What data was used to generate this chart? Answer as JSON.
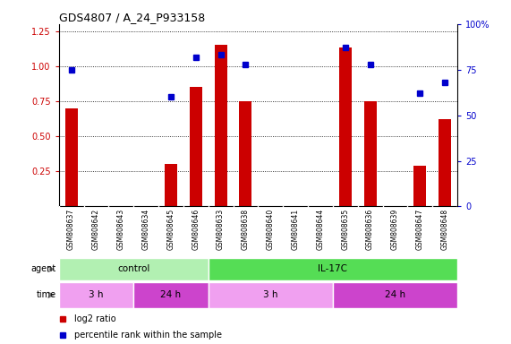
{
  "title": "GDS4807 / A_24_P933158",
  "samples": [
    "GSM808637",
    "GSM808642",
    "GSM808643",
    "GSM808634",
    "GSM808645",
    "GSM808646",
    "GSM808633",
    "GSM808638",
    "GSM808640",
    "GSM808641",
    "GSM808644",
    "GSM808635",
    "GSM808636",
    "GSM808639",
    "GSM808647",
    "GSM808648"
  ],
  "log2_ratio": [
    0.7,
    0.0,
    0.0,
    0.0,
    0.3,
    0.85,
    1.15,
    0.75,
    0.0,
    0.0,
    0.0,
    1.13,
    0.75,
    0.0,
    0.29,
    0.62
  ],
  "percentile_pct": [
    75,
    0,
    0,
    0,
    60,
    82,
    83,
    78,
    0,
    0,
    0,
    87,
    78,
    0,
    62,
    68
  ],
  "percentile_show": [
    true,
    false,
    false,
    false,
    true,
    true,
    true,
    true,
    false,
    false,
    false,
    true,
    true,
    false,
    true,
    true
  ],
  "bar_color": "#cc0000",
  "dot_color": "#0000cc",
  "ylim_left": [
    0.0,
    1.3
  ],
  "ylim_right": [
    0,
    100
  ],
  "yticks_left": [
    0.25,
    0.5,
    0.75,
    1.0,
    1.25
  ],
  "yticks_right": [
    0,
    25,
    50,
    75,
    100
  ],
  "agent_groups": [
    {
      "label": "control",
      "start": 0,
      "end": 6,
      "color": "#b2f0b2"
    },
    {
      "label": "IL-17C",
      "start": 6,
      "end": 16,
      "color": "#55dd55"
    }
  ],
  "time_groups": [
    {
      "label": "3 h",
      "start": 0,
      "end": 3,
      "color": "#f0a0f0"
    },
    {
      "label": "24 h",
      "start": 3,
      "end": 6,
      "color": "#cc44cc"
    },
    {
      "label": "3 h",
      "start": 6,
      "end": 11,
      "color": "#f0a0f0"
    },
    {
      "label": "24 h",
      "start": 11,
      "end": 16,
      "color": "#cc44cc"
    }
  ],
  "legend_items": [
    {
      "label": "log2 ratio",
      "color": "#cc0000"
    },
    {
      "label": "percentile rank within the sample",
      "color": "#0000cc"
    }
  ],
  "background_color": "#ffffff",
  "plot_bg_color": "#ffffff",
  "tick_label_color_left": "#cc0000",
  "tick_label_color_right": "#0000cc",
  "label_bg_color": "#cccccc",
  "bar_width": 0.5
}
